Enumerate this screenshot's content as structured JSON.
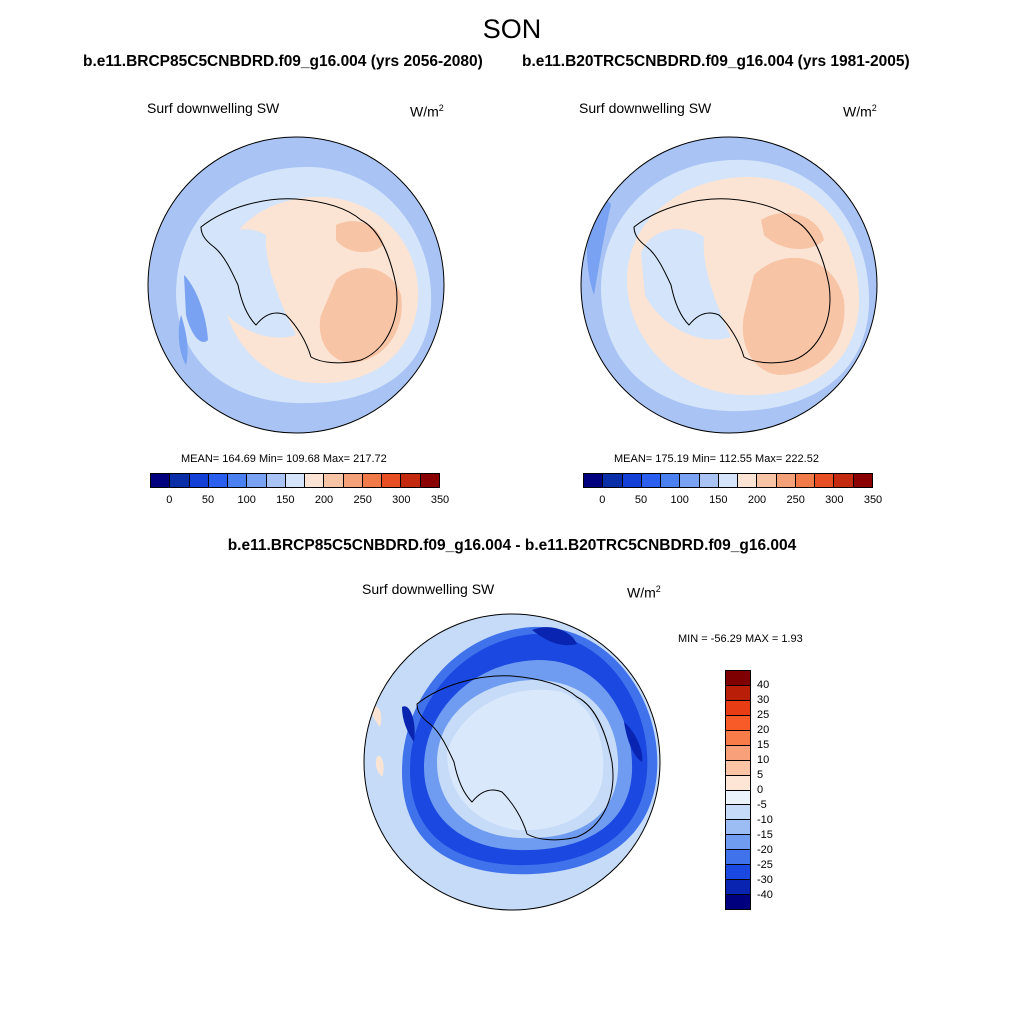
{
  "season": "SON",
  "panels": [
    {
      "case_title": "b.e11.BRCP85C5CNBDRD.f09_g16.004 (yrs 2056-2080)",
      "variable": "Surf downwelling SW",
      "units": "W/m",
      "units_exp": "2",
      "stats": "MEAN= 164.69  Min= 109.68  Max= 217.72"
    },
    {
      "case_title": "b.e11.B20TRC5CNBDRD.f09_g16.004 (yrs 1981-2005)",
      "variable": "Surf downwelling SW",
      "units": "W/m",
      "units_exp": "2",
      "stats": "MEAN= 175.19  Min= 112.55  Max= 222.52"
    }
  ],
  "diff_panel": {
    "title": "b.e11.BRCP85C5CNBDRD.f09_g16.004 - b.e11.B20TRC5CNBDRD.f09_g16.004",
    "variable": "Surf downwelling SW",
    "units": "W/m",
    "units_exp": "2",
    "stats": "MIN = -56.29 MAX =   1.93"
  },
  "abs_colorbar": {
    "tick_labels": [
      "0",
      "50",
      "100",
      "150",
      "200",
      "250",
      "300",
      "350"
    ],
    "colors": [
      "#00007f",
      "#0a2ea8",
      "#1440d8",
      "#2a5ff0",
      "#4a80f0",
      "#7aa2f2",
      "#a9c4f4",
      "#d4e4fa",
      "#fbe4d4",
      "#f8c4a6",
      "#f4a078",
      "#f07a48",
      "#e84e24",
      "#c42a10",
      "#8a0000"
    ]
  },
  "diff_colorbar": {
    "tick_labels": [
      "40",
      "30",
      "25",
      "20",
      "15",
      "10",
      "5",
      "0",
      "-5",
      "-10",
      "-15",
      "-20",
      "-25",
      "-30",
      "-40"
    ],
    "colors": [
      "#7f0000",
      "#b81e08",
      "#e83c14",
      "#f85a28",
      "#f87c4a",
      "#f8a07a",
      "#fbc4a4",
      "#fde6d6",
      "#eaf2fc",
      "#c6dbf8",
      "#9cbdf4",
      "#6f9cf0",
      "#4072ec",
      "#1a48e0",
      "#0824b0",
      "#00007f"
    ]
  },
  "map_colors": {
    "outer_ring": "#a9c4f4",
    "mid_ring": "#d4e4fa",
    "warm_light": "#fbe4d4",
    "warm_mid": "#f8c4a6",
    "diff_base": "#c6dbf8",
    "diff_inner": "#d9e8fb",
    "diff_band_outer": "#1a48e0",
    "diff_band_core": "#0824b0"
  }
}
